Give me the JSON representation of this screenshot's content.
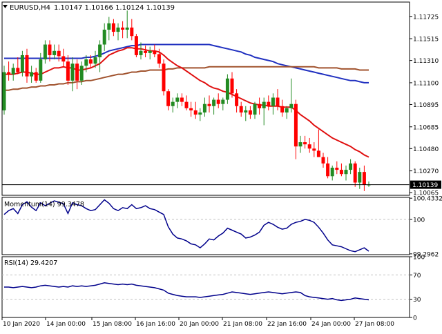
{
  "header": {
    "symbol": "EURUSD,H4",
    "ohlc": "1.10147 1.10166 1.10124 1.10139"
  },
  "colors": {
    "bull": "#228b22",
    "bear": "#ff0000",
    "ma_fast": "#e01010",
    "ma_slow": "#a0522d",
    "ma_mid": "#2030c0",
    "indicator": "#00008b",
    "grid": "#c0c0c0",
    "frame": "#000000"
  },
  "chart_data": [
    {
      "type": "candlestick",
      "title": "EURUSD,H4",
      "ylim": [
        1.1004,
        1.1186
      ],
      "y_ticks": [
        "1.11725",
        "1.11515",
        "1.11310",
        "1.11100",
        "1.10895",
        "1.10685",
        "1.10480",
        "1.10270",
        "1.10065"
      ],
      "last_price_label": "1.10139",
      "candles": [
        [
          1.1084,
          1.1126,
          1.108,
          1.112
        ],
        [
          1.112,
          1.113,
          1.1112,
          1.1118
        ],
        [
          1.1118,
          1.1128,
          1.1112,
          1.1124
        ],
        [
          1.1124,
          1.1134,
          1.1118,
          1.112
        ],
        [
          1.112,
          1.114,
          1.1116,
          1.1136
        ],
        [
          1.1136,
          1.1142,
          1.111,
          1.1116
        ],
        [
          1.1116,
          1.1126,
          1.111,
          1.112
        ],
        [
          1.112,
          1.1124,
          1.111,
          1.1112
        ],
        [
          1.1112,
          1.1138,
          1.111,
          1.1132
        ],
        [
          1.1132,
          1.115,
          1.1128,
          1.1146
        ],
        [
          1.1146,
          1.115,
          1.113,
          1.1136
        ],
        [
          1.1136,
          1.1146,
          1.1132,
          1.114
        ],
        [
          1.114,
          1.1146,
          1.113,
          1.1135
        ],
        [
          1.1135,
          1.1142,
          1.1125,
          1.113
        ],
        [
          1.113,
          1.1136,
          1.1108,
          1.1112
        ],
        [
          1.1112,
          1.1134,
          1.1102,
          1.1128
        ],
        [
          1.1128,
          1.1132,
          1.1104,
          1.1112
        ],
        [
          1.1112,
          1.113,
          1.1108,
          1.1126
        ],
        [
          1.1126,
          1.1136,
          1.112,
          1.1132
        ],
        [
          1.1132,
          1.1136,
          1.1124,
          1.1128
        ],
        [
          1.1128,
          1.114,
          1.1124,
          1.1134
        ],
        [
          1.1134,
          1.115,
          1.112,
          1.1146
        ],
        [
          1.1146,
          1.1166,
          1.114,
          1.116
        ],
        [
          1.116,
          1.1172,
          1.115,
          1.1166
        ],
        [
          1.1166,
          1.117,
          1.1154,
          1.1158
        ],
        [
          1.1158,
          1.1166,
          1.115,
          1.1162
        ],
        [
          1.1162,
          1.1168,
          1.1152,
          1.116
        ],
        [
          1.116,
          1.1178,
          1.1152,
          1.1162
        ],
        [
          1.1162,
          1.117,
          1.115,
          1.1154
        ],
        [
          1.1154,
          1.1156,
          1.1134,
          1.1136
        ],
        [
          1.1136,
          1.1148,
          1.1132,
          1.114
        ],
        [
          1.114,
          1.1145,
          1.1134,
          1.1138
        ],
        [
          1.1138,
          1.1144,
          1.1132,
          1.114
        ],
        [
          1.114,
          1.1146,
          1.1134,
          1.1137
        ],
        [
          1.1137,
          1.1142,
          1.1124,
          1.1128
        ],
        [
          1.1128,
          1.1132,
          1.1098,
          1.1102
        ],
        [
          1.1102,
          1.1104,
          1.1084,
          1.1088
        ],
        [
          1.1088,
          1.1096,
          1.1082,
          1.1092
        ],
        [
          1.1092,
          1.11,
          1.1086,
          1.1096
        ],
        [
          1.1096,
          1.11,
          1.1088,
          1.1092
        ],
        [
          1.1092,
          1.1098,
          1.1084,
          1.1086
        ],
        [
          1.1086,
          1.1092,
          1.1078,
          1.1084
        ],
        [
          1.1084,
          1.1092,
          1.1076,
          1.108
        ],
        [
          1.108,
          1.1086,
          1.1074,
          1.1082
        ],
        [
          1.1082,
          1.1096,
          1.1078,
          1.109
        ],
        [
          1.109,
          1.1098,
          1.1082,
          1.1088
        ],
        [
          1.1088,
          1.1096,
          1.108,
          1.1094
        ],
        [
          1.1094,
          1.11,
          1.1086,
          1.109
        ],
        [
          1.109,
          1.1096,
          1.1084,
          1.1094
        ],
        [
          1.1094,
          1.1118,
          1.109,
          1.1114
        ],
        [
          1.1114,
          1.112,
          1.1096,
          1.11
        ],
        [
          1.11,
          1.1104,
          1.1082,
          1.1088
        ],
        [
          1.1088,
          1.1092,
          1.1078,
          1.1082
        ],
        [
          1.1082,
          1.1088,
          1.1074,
          1.1084
        ],
        [
          1.1084,
          1.1088,
          1.1076,
          1.108
        ],
        [
          1.108,
          1.1092,
          1.1076,
          1.109
        ],
        [
          1.109,
          1.1096,
          1.108,
          1.1086
        ],
        [
          1.1086,
          1.1096,
          1.107,
          1.1092
        ],
        [
          1.1092,
          1.1098,
          1.1084,
          1.1088
        ],
        [
          1.1088,
          1.11,
          1.108,
          1.1096
        ],
        [
          1.1096,
          1.1104,
          1.1084,
          1.1088
        ],
        [
          1.1088,
          1.1094,
          1.1078,
          1.1082
        ],
        [
          1.1082,
          1.1088,
          1.1076,
          1.1086
        ],
        [
          1.1086,
          1.1114,
          1.1082,
          1.109
        ],
        [
          1.109,
          1.1094,
          1.1038,
          1.105
        ],
        [
          1.105,
          1.106,
          1.1044,
          1.1054
        ],
        [
          1.1054,
          1.106,
          1.1048,
          1.1052
        ],
        [
          1.1052,
          1.1058,
          1.1044,
          1.1048
        ],
        [
          1.1048,
          1.1054,
          1.104,
          1.1046
        ],
        [
          1.1046,
          1.1066,
          1.104,
          1.104
        ],
        [
          1.104,
          1.1044,
          1.103,
          1.1034
        ],
        [
          1.1034,
          1.104,
          1.102,
          1.1022
        ],
        [
          1.1022,
          1.1032,
          1.1018,
          1.103
        ],
        [
          1.103,
          1.1036,
          1.1024,
          1.1028
        ],
        [
          1.1028,
          1.1034,
          1.1022,
          1.1024
        ],
        [
          1.1024,
          1.1032,
          1.1018,
          1.1028
        ],
        [
          1.1028,
          1.1038,
          1.1024,
          1.1034
        ],
        [
          1.1034,
          1.1036,
          1.1012,
          1.1016
        ],
        [
          1.1016,
          1.103,
          1.101,
          1.1026
        ],
        [
          1.1026,
          1.1032,
          1.1008,
          1.1014
        ],
        [
          1.1014,
          1.1017,
          1.1012,
          1.1014
        ]
      ],
      "series": [
        {
          "key": "ma_mid",
          "values": [
            1.1133,
            1.1133,
            1.1133,
            1.1133,
            1.1133,
            1.1133,
            1.1133,
            1.1133,
            1.1133,
            1.1133,
            1.1133,
            1.1133,
            1.1133,
            1.1133,
            1.1133,
            1.1133,
            1.1133,
            1.1133,
            1.1134,
            1.1134,
            1.1135,
            1.1136,
            1.1138,
            1.114,
            1.1141,
            1.1142,
            1.1143,
            1.1144,
            1.1145,
            1.1145,
            1.1146,
            1.1146,
            1.1146,
            1.1146,
            1.1146,
            1.1146,
            1.1146,
            1.1146,
            1.1146,
            1.1146,
            1.1146,
            1.1146,
            1.1146,
            1.1146,
            1.1146,
            1.1146,
            1.1145,
            1.1144,
            1.1143,
            1.1142,
            1.1141,
            1.114,
            1.1139,
            1.1137,
            1.1136,
            1.1134,
            1.1133,
            1.1132,
            1.1131,
            1.113,
            1.1128,
            1.1127,
            1.1126,
            1.1125,
            1.1124,
            1.1123,
            1.1122,
            1.1121,
            1.112,
            1.1119,
            1.1118,
            1.1117,
            1.1116,
            1.1115,
            1.1114,
            1.1113,
            1.1112,
            1.1112,
            1.1111,
            1.111,
            1.111
          ]
        },
        {
          "key": "ma_slow",
          "values": [
            1.1103,
            1.1103,
            1.1104,
            1.1104,
            1.1105,
            1.1105,
            1.1106,
            1.1106,
            1.1107,
            1.1107,
            1.1108,
            1.1108,
            1.1109,
            1.1109,
            1.111,
            1.111,
            1.1111,
            1.1111,
            1.1112,
            1.1112,
            1.1113,
            1.1114,
            1.1115,
            1.1116,
            1.1117,
            1.1118,
            1.1118,
            1.1119,
            1.112,
            1.112,
            1.1121,
            1.1121,
            1.1122,
            1.1122,
            1.1122,
            1.1122,
            1.1123,
            1.1123,
            1.1124,
            1.1124,
            1.1124,
            1.1124,
            1.1124,
            1.1124,
            1.1124,
            1.1125,
            1.1125,
            1.1125,
            1.1125,
            1.1125,
            1.1125,
            1.1125,
            1.1125,
            1.1125,
            1.1125,
            1.1125,
            1.1125,
            1.1125,
            1.1125,
            1.1125,
            1.1125,
            1.1125,
            1.1125,
            1.1125,
            1.1125,
            1.1125,
            1.1125,
            1.1125,
            1.1125,
            1.1124,
            1.1124,
            1.1124,
            1.1124,
            1.1124,
            1.1123,
            1.1123,
            1.1123,
            1.1123,
            1.1122,
            1.1122,
            1.1122
          ]
        },
        {
          "key": "ma_fast",
          "values": [
            1.1118,
            1.1118,
            1.1118,
            1.1119,
            1.112,
            1.112,
            1.1119,
            1.1118,
            1.1118,
            1.112,
            1.1122,
            1.1124,
            1.1124,
            1.1125,
            1.1124,
            1.1124,
            1.1122,
            1.1122,
            1.1123,
            1.1124,
            1.1126,
            1.1128,
            1.1132,
            1.1136,
            1.1138,
            1.114,
            1.1141,
            1.1143,
            1.1143,
            1.1142,
            1.1142,
            1.1141,
            1.114,
            1.114,
            1.1139,
            1.1136,
            1.1132,
            1.1129,
            1.1126,
            1.1124,
            1.1121,
            1.1118,
            1.1115,
            1.1112,
            1.111,
            1.1107,
            1.1105,
            1.1104,
            1.1102,
            1.1101,
            1.1099,
            1.1097,
            1.1095,
            1.1093,
            1.1091,
            1.109,
            1.1089,
            1.1089,
            1.1088,
            1.1088,
            1.1088,
            1.1087,
            1.1087,
            1.1087,
            1.1084,
            1.108,
            1.1077,
            1.1074,
            1.107,
            1.1067,
            1.1064,
            1.1061,
            1.1058,
            1.1056,
            1.1054,
            1.1052,
            1.105,
            1.1047,
            1.1045,
            1.1042,
            1.104
          ]
        }
      ]
    },
    {
      "type": "line",
      "title": "Momentum(14) 99.3478",
      "ylim": [
        99.28,
        100.45
      ],
      "y_ticks": [
        "100.4332",
        "100",
        "99.2962"
      ],
      "reference_lines": [
        100
      ],
      "values": [
        100.1,
        100.18,
        100.22,
        100.12,
        100.3,
        100.36,
        100.25,
        100.18,
        100.34,
        100.28,
        100.33,
        100.38,
        100.35,
        100.32,
        100.12,
        100.34,
        100.3,
        100.28,
        100.22,
        100.18,
        100.2,
        100.3,
        100.4,
        100.33,
        100.22,
        100.18,
        100.24,
        100.22,
        100.3,
        100.22,
        100.24,
        100.28,
        100.22,
        100.2,
        100.15,
        100.1,
        99.85,
        99.7,
        99.62,
        99.6,
        99.56,
        99.5,
        99.48,
        99.42,
        99.5,
        99.6,
        99.58,
        99.66,
        99.72,
        99.82,
        99.78,
        99.74,
        99.7,
        99.62,
        99.64,
        99.68,
        99.74,
        99.88,
        99.94,
        99.9,
        99.84,
        99.8,
        99.82,
        99.9,
        99.94,
        99.96,
        100.0,
        99.98,
        99.94,
        99.84,
        99.72,
        99.58,
        99.48,
        99.46,
        99.44,
        99.4,
        99.36,
        99.34,
        99.38,
        99.42,
        99.35
      ]
    },
    {
      "type": "line",
      "title": "RSI(14) 29.4207",
      "ylim": [
        0,
        100
      ],
      "y_ticks": [
        "100",
        "70",
        "30",
        "0"
      ],
      "reference_lines": [
        70,
        30
      ],
      "values": [
        50,
        50,
        49,
        50,
        51,
        50,
        49,
        50,
        52,
        53,
        52,
        51,
        50,
        51,
        50,
        52,
        51,
        52,
        51,
        52,
        53,
        55,
        57,
        56,
        55,
        54,
        55,
        54,
        55,
        53,
        52,
        51,
        50,
        49,
        47,
        45,
        40,
        38,
        36,
        35,
        34,
        34,
        34,
        33,
        34,
        35,
        36,
        37,
        38,
        40,
        42,
        41,
        40,
        39,
        38,
        39,
        40,
        41,
        42,
        41,
        40,
        39,
        40,
        41,
        42,
        41,
        36,
        34,
        33,
        32,
        31,
        30,
        31,
        29,
        28,
        29,
        30,
        32,
        31,
        30,
        29
      ]
    }
  ],
  "x_axis": {
    "labels": [
      "10 Jan 2020",
      "14 Jan 00:00",
      "15 Jan 08:00",
      "16 Jan 16:00",
      "20 Jan 00:00",
      "21 Jan 08:00",
      "22 Jan 16:00",
      "24 Jan 00:00",
      "27 Jan 08:00"
    ]
  }
}
